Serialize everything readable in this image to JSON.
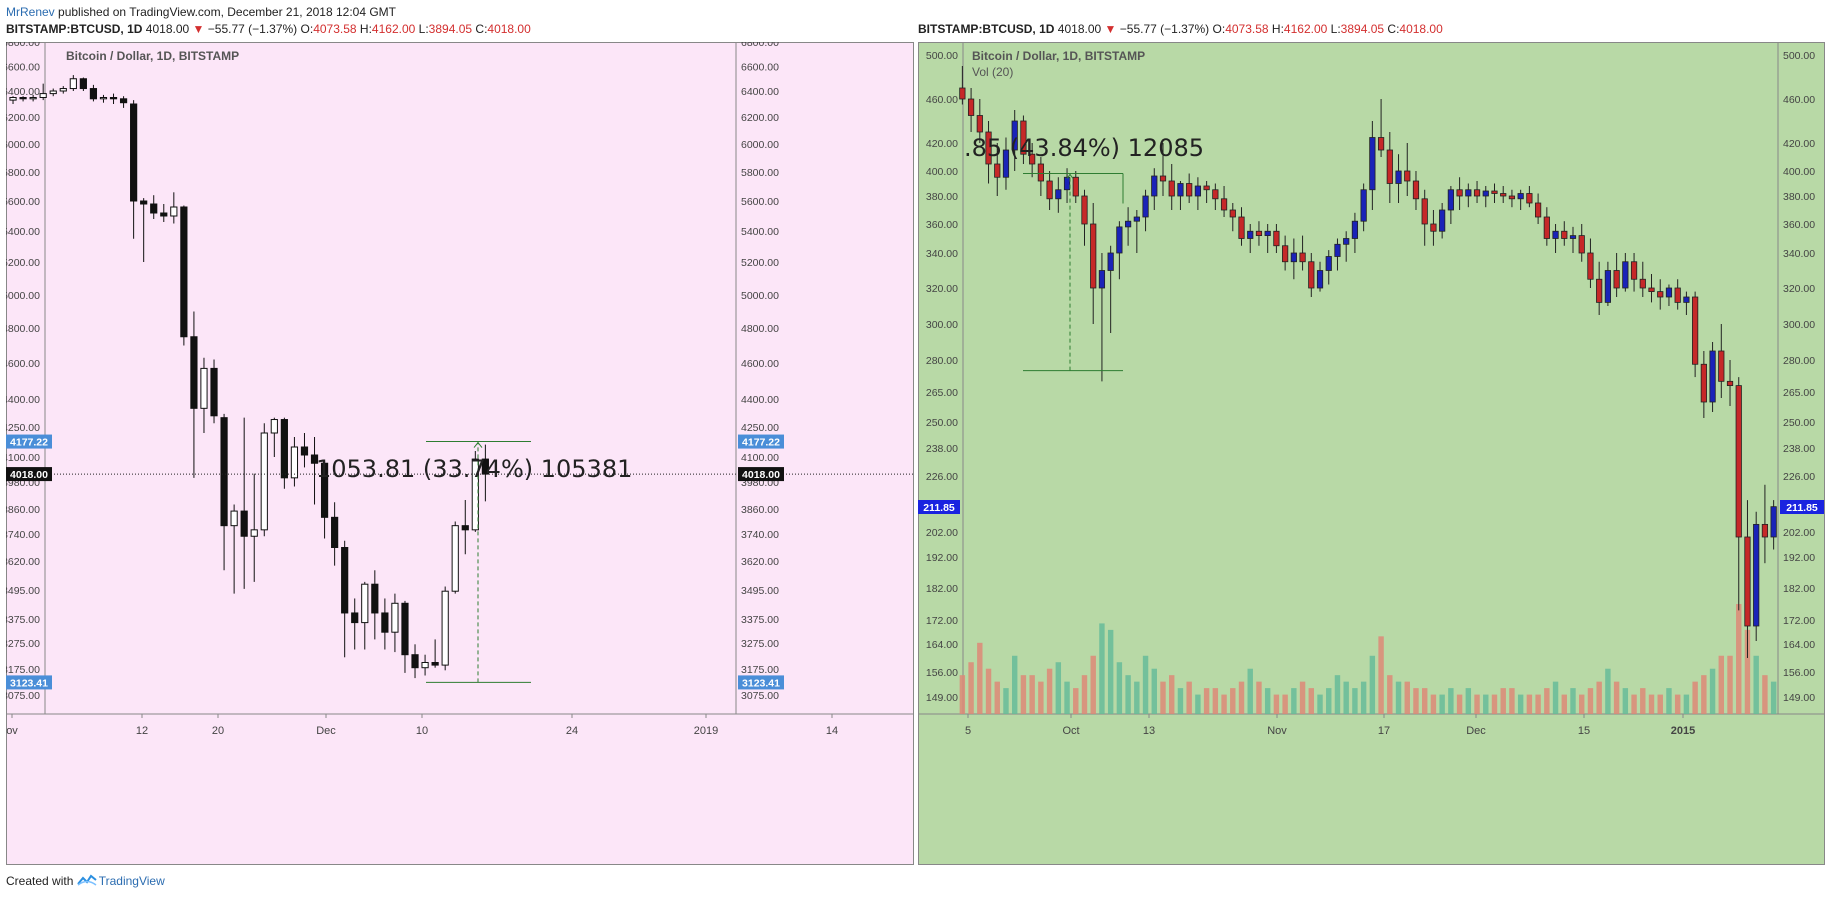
{
  "header": {
    "author": "MrRenev",
    "published": " published on TradingView.com, December 21, 2018 12:04 GMT"
  },
  "footer": {
    "created_with": "Created with",
    "brand": "TradingView"
  },
  "colors": {
    "left_bg": "#fce6f8",
    "right_bg": "#b8d9a6",
    "up_red": "#c62828",
    "down_blue": "#1a23b8",
    "vol_up": "#66bb99",
    "vol_down": "#dd8877",
    "measure_green": "#2e7d32",
    "badge_blue": "#4a8ed8",
    "badge_black": "#111111",
    "badge_right": "#1a23e0",
    "text_red": "#d32f2f"
  },
  "panes": [
    {
      "legend": {
        "symbol": "BITSTAMP:BTCUSD, 1D",
        "close": "4018.00",
        "arrow": "▼",
        "change": "−55.77 (−1.37%)",
        "o_label": "O:",
        "o": "4073.58",
        "h_label": "H:",
        "h": "4162.00",
        "l_label": "L:",
        "l": "3894.05",
        "c_label": "C:",
        "c": "4018.00"
      },
      "title": "Bitcoin / Dollar, 1D, BITSTAMP",
      "measure_text": "1053.81 (33.74%) 105381",
      "badges": {
        "upper": "4177.22",
        "current": "4018.00",
        "lower": "3123.41"
      }
    },
    {
      "legend": {
        "symbol": "BITSTAMP:BTCUSD, 1D",
        "close": "4018.00",
        "arrow": "▼",
        "change": "−55.77 (−1.37%)",
        "o_label": "O:",
        "o": "4073.58",
        "h_label": "H:",
        "h": "4162.00",
        "l_label": "L:",
        "l": "3894.05",
        "c_label": "C:",
        "c": "4018.00"
      },
      "title": "Bitcoin / Dollar, 1D, BITSTAMP",
      "subtitle": "Vol (20)",
      "measure_text": ".85 (43.84%) 12085",
      "badges": {
        "current": "211.85"
      }
    }
  ],
  "chart_data": [
    {
      "type": "candlestick",
      "title": "Bitcoin / Dollar, 1D, BITSTAMP",
      "y_ticks": [
        "6800.00",
        "6600.00",
        "6400.00",
        "6200.00",
        "6000.00",
        "5800.00",
        "5600.00",
        "5400.00",
        "5200.00",
        "5000.00",
        "4800.00",
        "4600.00",
        "4400.00",
        "4250.00",
        "4100.00",
        "3980.00",
        "3860.00",
        "3740.00",
        "3620.00",
        "3495.00",
        "3375.00",
        "3275.00",
        "3175.00",
        "3075.00"
      ],
      "x_ticks": [
        "ov",
        "12",
        "20",
        "Dec",
        "10",
        "24",
        "2019",
        "14"
      ],
      "candles": [
        [
          6330,
          6360,
          6300,
          6350
        ],
        [
          6350,
          6360,
          6320,
          6340
        ],
        [
          6340,
          6370,
          6320,
          6350
        ],
        [
          6350,
          6460,
          6330,
          6380
        ],
        [
          6380,
          6420,
          6360,
          6400
        ],
        [
          6400,
          6440,
          6380,
          6420
        ],
        [
          6420,
          6530,
          6400,
          6500
        ],
        [
          6500,
          6510,
          6400,
          6420
        ],
        [
          6420,
          6450,
          6320,
          6340
        ],
        [
          6340,
          6370,
          6310,
          6350
        ],
        [
          6350,
          6380,
          6300,
          6340
        ],
        [
          6340,
          6360,
          6270,
          6310
        ],
        [
          6300,
          6330,
          5350,
          5600
        ],
        [
          5600,
          5620,
          5200,
          5580
        ],
        [
          5580,
          5640,
          5480,
          5520
        ],
        [
          5520,
          5580,
          5460,
          5500
        ],
        [
          5500,
          5660,
          5450,
          5560
        ],
        [
          5560,
          5570,
          4700,
          4750
        ],
        [
          4750,
          4900,
          4000,
          4350
        ],
        [
          4350,
          4630,
          4220,
          4570
        ],
        [
          4570,
          4620,
          4270,
          4310
        ],
        [
          4300,
          4320,
          3580,
          3780
        ],
        [
          3780,
          3880,
          3480,
          3850
        ],
        [
          3850,
          4300,
          3500,
          3730
        ],
        [
          3730,
          4020,
          3530,
          3760
        ],
        [
          3760,
          4270,
          3730,
          4220
        ],
        [
          4220,
          4300,
          4100,
          4290
        ],
        [
          4290,
          4300,
          3950,
          4000
        ],
        [
          4000,
          4200,
          3960,
          4150
        ],
        [
          4150,
          4220,
          4050,
          4110
        ],
        [
          4110,
          4200,
          3880,
          4070
        ],
        [
          4070,
          4080,
          3720,
          3820
        ],
        [
          3820,
          3890,
          3600,
          3680
        ],
        [
          3680,
          3710,
          3220,
          3400
        ],
        [
          3400,
          3460,
          3250,
          3360
        ],
        [
          3360,
          3530,
          3250,
          3520
        ],
        [
          3520,
          3580,
          3290,
          3400
        ],
        [
          3400,
          3460,
          3250,
          3320
        ],
        [
          3320,
          3480,
          3240,
          3440
        ],
        [
          3440,
          3450,
          3160,
          3230
        ],
        [
          3230,
          3270,
          3140,
          3180
        ],
        [
          3180,
          3230,
          3150,
          3200
        ],
        [
          3200,
          3290,
          3180,
          3190
        ],
        [
          3190,
          3510,
          3170,
          3490
        ],
        [
          3490,
          3800,
          3480,
          3780
        ],
        [
          3780,
          3900,
          3650,
          3760
        ],
        [
          3760,
          4130,
          3750,
          4090
        ],
        [
          4090,
          4162,
          3894,
          4018
        ]
      ],
      "measure": {
        "from": 3123.41,
        "to": 4177.22,
        "text": "1053.81 (33.74%) 105381"
      }
    },
    {
      "type": "candlestick",
      "title": "Bitcoin / Dollar, 1D, BITSTAMP",
      "subtitle": "Vol (20)",
      "y_ticks": [
        "500.00",
        "460.00",
        "420.00",
        "400.00",
        "380.00",
        "360.00",
        "340.00",
        "320.00",
        "300.00",
        "280.00",
        "265.00",
        "250.00",
        "238.00",
        "226.00",
        "211.85",
        "202.00",
        "192.00",
        "182.00",
        "172.00",
        "164.00",
        "156.00",
        "149.00"
      ],
      "x_ticks": [
        "5",
        "Oct",
        "13",
        "Nov",
        "17",
        "Dec",
        "15",
        "2015"
      ],
      "candles": [
        [
          470,
          490,
          455,
          460
        ],
        [
          460,
          470,
          430,
          445
        ],
        [
          445,
          460,
          420,
          430
        ],
        [
          430,
          440,
          390,
          405
        ],
        [
          405,
          420,
          380,
          395
        ],
        [
          395,
          425,
          385,
          415
        ],
        [
          415,
          450,
          400,
          440
        ],
        [
          440,
          445,
          405,
          412
        ],
        [
          412,
          420,
          395,
          405
        ],
        [
          405,
          410,
          380,
          392
        ],
        [
          392,
          400,
          370,
          378
        ],
        [
          378,
          395,
          368,
          385
        ],
        [
          385,
          402,
          375,
          395
        ],
        [
          395,
          400,
          375,
          380
        ],
        [
          380,
          385,
          345,
          360
        ],
        [
          360,
          375,
          300,
          320
        ],
        [
          320,
          340,
          270,
          330
        ],
        [
          330,
          345,
          295,
          340
        ],
        [
          340,
          362,
          325,
          358
        ],
        [
          358,
          372,
          345,
          362
        ],
        [
          362,
          370,
          340,
          365
        ],
        [
          365,
          385,
          355,
          380
        ],
        [
          380,
          402,
          370,
          396
        ],
        [
          396,
          420,
          380,
          392
        ],
        [
          392,
          405,
          370,
          380
        ],
        [
          380,
          392,
          370,
          390
        ],
        [
          390,
          398,
          375,
          380
        ],
        [
          380,
          395,
          370,
          388
        ],
        [
          388,
          392,
          375,
          385
        ],
        [
          385,
          390,
          370,
          378
        ],
        [
          378,
          388,
          365,
          370
        ],
        [
          370,
          375,
          355,
          365
        ],
        [
          365,
          372,
          345,
          350
        ],
        [
          350,
          360,
          340,
          355
        ],
        [
          355,
          362,
          345,
          352
        ],
        [
          352,
          360,
          340,
          355
        ],
        [
          355,
          360,
          340,
          345
        ],
        [
          345,
          352,
          330,
          335
        ],
        [
          335,
          350,
          325,
          340
        ],
        [
          340,
          352,
          330,
          335
        ],
        [
          335,
          340,
          315,
          320
        ],
        [
          320,
          335,
          318,
          330
        ],
        [
          330,
          342,
          322,
          338
        ],
        [
          338,
          350,
          330,
          346
        ],
        [
          346,
          355,
          335,
          350
        ],
        [
          350,
          368,
          340,
          362
        ],
        [
          362,
          390,
          355,
          385
        ],
        [
          385,
          440,
          370,
          425
        ],
        [
          425,
          460,
          410,
          415
        ],
        [
          415,
          430,
          375,
          390
        ],
        [
          390,
          412,
          375,
          400
        ],
        [
          400,
          420,
          380,
          392
        ],
        [
          392,
          400,
          370,
          378
        ],
        [
          378,
          385,
          345,
          360
        ],
        [
          360,
          370,
          345,
          355
        ],
        [
          355,
          375,
          350,
          370
        ],
        [
          370,
          388,
          360,
          385
        ],
        [
          385,
          395,
          370,
          380
        ],
        [
          380,
          390,
          372,
          385
        ],
        [
          385,
          392,
          375,
          380
        ],
        [
          380,
          388,
          372,
          384
        ],
        [
          384,
          390,
          375,
          382
        ],
        [
          382,
          388,
          375,
          380
        ],
        [
          380,
          385,
          372,
          378
        ],
        [
          378,
          385,
          370,
          382
        ],
        [
          382,
          388,
          372,
          375
        ],
        [
          375,
          382,
          360,
          365
        ],
        [
          365,
          372,
          345,
          350
        ],
        [
          350,
          360,
          340,
          355
        ],
        [
          355,
          362,
          345,
          350
        ],
        [
          350,
          358,
          340,
          352
        ],
        [
          352,
          360,
          335,
          340
        ],
        [
          340,
          350,
          320,
          325
        ],
        [
          325,
          335,
          305,
          312
        ],
        [
          312,
          335,
          310,
          330
        ],
        [
          330,
          340,
          315,
          320
        ],
        [
          320,
          340,
          318,
          335
        ],
        [
          335,
          340,
          318,
          325
        ],
        [
          325,
          335,
          315,
          320
        ],
        [
          320,
          328,
          312,
          318
        ],
        [
          318,
          325,
          308,
          315
        ],
        [
          315,
          322,
          310,
          320
        ],
        [
          320,
          325,
          308,
          312
        ],
        [
          312,
          318,
          305,
          315
        ],
        [
          315,
          318,
          272,
          278
        ],
        [
          278,
          285,
          252,
          260
        ],
        [
          260,
          290,
          255,
          285
        ],
        [
          285,
          300,
          262,
          270
        ],
        [
          270,
          280,
          258,
          268
        ],
        [
          268,
          272,
          175,
          200
        ],
        [
          200,
          215,
          160,
          170
        ],
        [
          170,
          210,
          165,
          205
        ],
        [
          205,
          222,
          190,
          200
        ],
        [
          200,
          215,
          195,
          212
        ]
      ],
      "volume": [
        6,
        8,
        11,
        7,
        5,
        4,
        9,
        6,
        6,
        5,
        7,
        8,
        5,
        4,
        6,
        9,
        14,
        13,
        8,
        6,
        5,
        9,
        7,
        5,
        6,
        4,
        5,
        3,
        4,
        4,
        3,
        4,
        5,
        7,
        5,
        4,
        3,
        3,
        4,
        5,
        4,
        3,
        4,
        6,
        5,
        4,
        5,
        9,
        12,
        6,
        5,
        5,
        4,
        4,
        3,
        3,
        4,
        3,
        4,
        3,
        3,
        3,
        4,
        4,
        3,
        3,
        3,
        4,
        5,
        3,
        4,
        3,
        4,
        5,
        7,
        5,
        4,
        3,
        4,
        3,
        3,
        4,
        3,
        3,
        5,
        6,
        7,
        9,
        9,
        17,
        13,
        9,
        6,
        5
      ],
      "measure": {
        "from": 275,
        "to": 398,
        "text": ".85 (43.84%) 12085"
      }
    }
  ]
}
